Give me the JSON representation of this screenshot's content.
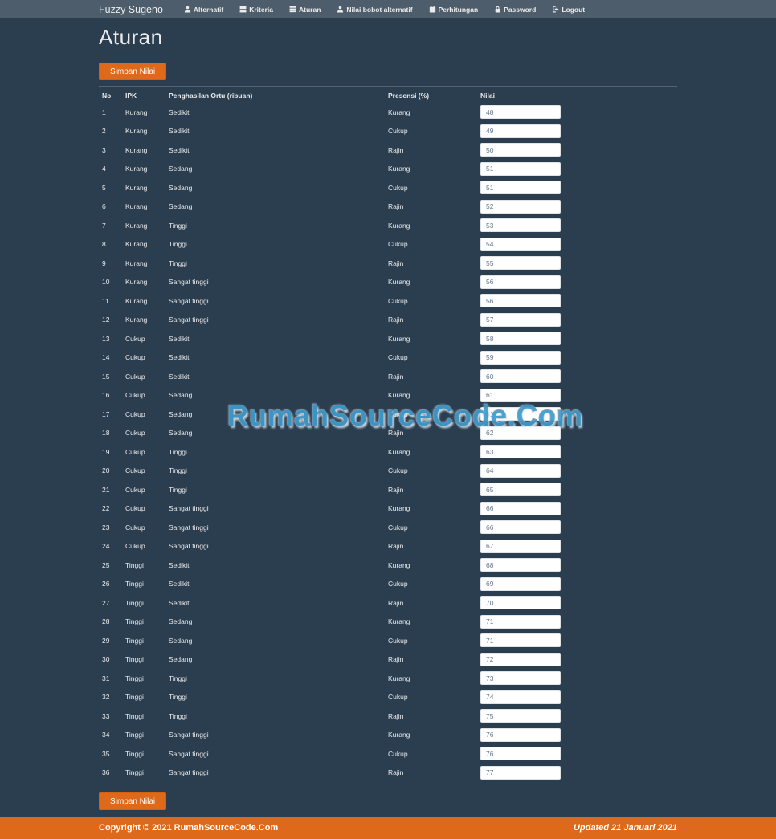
{
  "navbar": {
    "brand": "Fuzzy Sugeno",
    "items": [
      {
        "label": "Alternatif",
        "icon": "user-icon"
      },
      {
        "label": "Kriteria",
        "icon": "grid-icon"
      },
      {
        "label": "Aturan",
        "icon": "list-icon"
      },
      {
        "label": "Nilai bobot alternatif",
        "icon": "user-icon"
      },
      {
        "label": "Perhitungan",
        "icon": "calendar-icon"
      },
      {
        "label": "Password",
        "icon": "lock-icon"
      },
      {
        "label": "Logout",
        "icon": "logout-icon"
      }
    ]
  },
  "page": {
    "title": "Aturan"
  },
  "buttons": {
    "save_label": "Simpan Nilai"
  },
  "table": {
    "headers": [
      "No",
      "IPK",
      "Penghasilan Ortu (ribuan)",
      "Presensi (%)",
      "Nilai"
    ],
    "rows": [
      {
        "no": 1,
        "ipk": "Kurang",
        "penghasilan": "Sedikit",
        "presensi": "Kurang",
        "nilai": "48"
      },
      {
        "no": 2,
        "ipk": "Kurang",
        "penghasilan": "Sedikit",
        "presensi": "Cukup",
        "nilai": "49"
      },
      {
        "no": 3,
        "ipk": "Kurang",
        "penghasilan": "Sedikit",
        "presensi": "Rajin",
        "nilai": "50"
      },
      {
        "no": 4,
        "ipk": "Kurang",
        "penghasilan": "Sedang",
        "presensi": "Kurang",
        "nilai": "51"
      },
      {
        "no": 5,
        "ipk": "Kurang",
        "penghasilan": "Sedang",
        "presensi": "Cukup",
        "nilai": "51"
      },
      {
        "no": 6,
        "ipk": "Kurang",
        "penghasilan": "Sedang",
        "presensi": "Rajin",
        "nilai": "52"
      },
      {
        "no": 7,
        "ipk": "Kurang",
        "penghasilan": "Tinggi",
        "presensi": "Kurang",
        "nilai": "53"
      },
      {
        "no": 8,
        "ipk": "Kurang",
        "penghasilan": "Tinggi",
        "presensi": "Cukup",
        "nilai": "54"
      },
      {
        "no": 9,
        "ipk": "Kurang",
        "penghasilan": "Tinggi",
        "presensi": "Rajin",
        "nilai": "55"
      },
      {
        "no": 10,
        "ipk": "Kurang",
        "penghasilan": "Sangat tinggi",
        "presensi": "Kurang",
        "nilai": "56"
      },
      {
        "no": 11,
        "ipk": "Kurang",
        "penghasilan": "Sangat tinggi",
        "presensi": "Cukup",
        "nilai": "56"
      },
      {
        "no": 12,
        "ipk": "Kurang",
        "penghasilan": "Sangat tinggi",
        "presensi": "Rajin",
        "nilai": "57"
      },
      {
        "no": 13,
        "ipk": "Cukup",
        "penghasilan": "Sedikit",
        "presensi": "Kurang",
        "nilai": "58"
      },
      {
        "no": 14,
        "ipk": "Cukup",
        "penghasilan": "Sedikit",
        "presensi": "Cukup",
        "nilai": "59"
      },
      {
        "no": 15,
        "ipk": "Cukup",
        "penghasilan": "Sedikit",
        "presensi": "Rajin",
        "nilai": "60"
      },
      {
        "no": 16,
        "ipk": "Cukup",
        "penghasilan": "Sedang",
        "presensi": "Kurang",
        "nilai": "61"
      },
      {
        "no": 17,
        "ipk": "Cukup",
        "penghasilan": "Sedang",
        "presensi": "Cukup",
        "nilai": "61"
      },
      {
        "no": 18,
        "ipk": "Cukup",
        "penghasilan": "Sedang",
        "presensi": "Rajin",
        "nilai": "62"
      },
      {
        "no": 19,
        "ipk": "Cukup",
        "penghasilan": "Tinggi",
        "presensi": "Kurang",
        "nilai": "63"
      },
      {
        "no": 20,
        "ipk": "Cukup",
        "penghasilan": "Tinggi",
        "presensi": "Cukup",
        "nilai": "64"
      },
      {
        "no": 21,
        "ipk": "Cukup",
        "penghasilan": "Tinggi",
        "presensi": "Rajin",
        "nilai": "65"
      },
      {
        "no": 22,
        "ipk": "Cukup",
        "penghasilan": "Sangat tinggi",
        "presensi": "Kurang",
        "nilai": "66"
      },
      {
        "no": 23,
        "ipk": "Cukup",
        "penghasilan": "Sangat tinggi",
        "presensi": "Cukup",
        "nilai": "66"
      },
      {
        "no": 24,
        "ipk": "Cukup",
        "penghasilan": "Sangat tinggi",
        "presensi": "Rajin",
        "nilai": "67"
      },
      {
        "no": 25,
        "ipk": "Tinggi",
        "penghasilan": "Sedikit",
        "presensi": "Kurang",
        "nilai": "68"
      },
      {
        "no": 26,
        "ipk": "Tinggi",
        "penghasilan": "Sedikit",
        "presensi": "Cukup",
        "nilai": "69"
      },
      {
        "no": 27,
        "ipk": "Tinggi",
        "penghasilan": "Sedikit",
        "presensi": "Rajin",
        "nilai": "70"
      },
      {
        "no": 28,
        "ipk": "Tinggi",
        "penghasilan": "Sedang",
        "presensi": "Kurang",
        "nilai": "71"
      },
      {
        "no": 29,
        "ipk": "Tinggi",
        "penghasilan": "Sedang",
        "presensi": "Cukup",
        "nilai": "71"
      },
      {
        "no": 30,
        "ipk": "Tinggi",
        "penghasilan": "Sedang",
        "presensi": "Rajin",
        "nilai": "72"
      },
      {
        "no": 31,
        "ipk": "Tinggi",
        "penghasilan": "Tinggi",
        "presensi": "Kurang",
        "nilai": "73"
      },
      {
        "no": 32,
        "ipk": "Tinggi",
        "penghasilan": "Tinggi",
        "presensi": "Cukup",
        "nilai": "74"
      },
      {
        "no": 33,
        "ipk": "Tinggi",
        "penghasilan": "Tinggi",
        "presensi": "Rajin",
        "nilai": "75"
      },
      {
        "no": 34,
        "ipk": "Tinggi",
        "penghasilan": "Sangat tinggi",
        "presensi": "Kurang",
        "nilai": "76"
      },
      {
        "no": 35,
        "ipk": "Tinggi",
        "penghasilan": "Sangat tinggi",
        "presensi": "Cukup",
        "nilai": "76"
      },
      {
        "no": 36,
        "ipk": "Tinggi",
        "penghasilan": "Sangat tinggi",
        "presensi": "Rajin",
        "nilai": "77"
      }
    ]
  },
  "watermark": "RumahSourceCode.Com",
  "footer": {
    "copyright": "Copyright © 2021 RumahSourceCode.Com",
    "updated": "Updated 21 Januari 2021"
  },
  "colors": {
    "accent_orange": "#DF691A",
    "body_bg": "#2B3E50",
    "navbar_bg": "#4E5D6C",
    "text": "#EBEBEB",
    "watermark_blue": "#3E9BCD"
  }
}
